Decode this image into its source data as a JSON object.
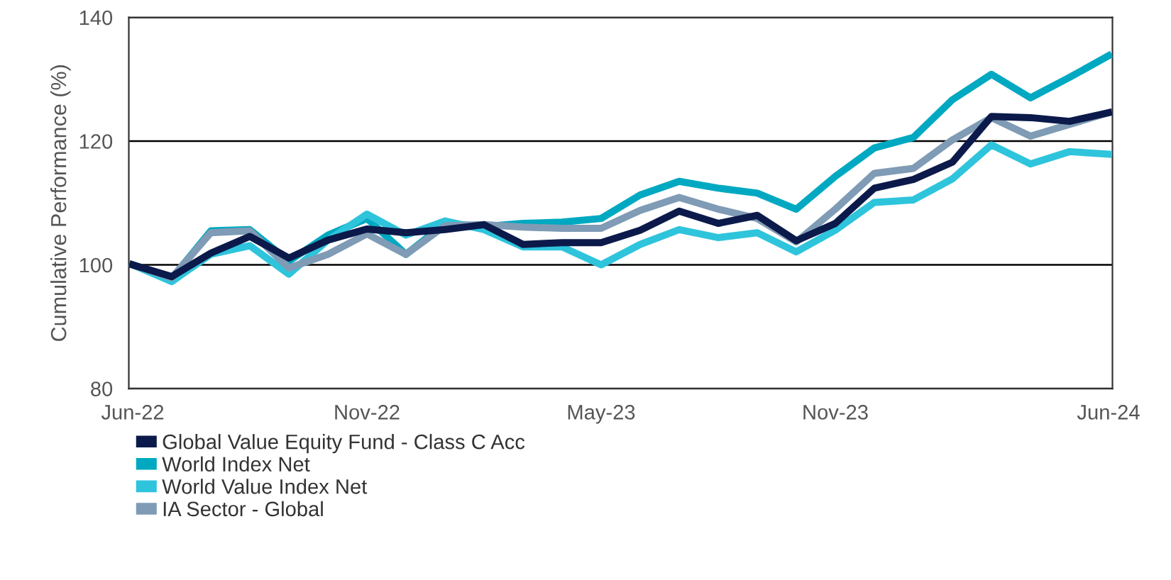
{
  "chart_data": {
    "type": "line",
    "ylabel": "Cumulative Performance (%)",
    "categories": [
      "Jun-22",
      null,
      null,
      null,
      null,
      null,
      "Nov-22",
      null,
      null,
      null,
      null,
      null,
      "May-23",
      null,
      null,
      null,
      null,
      null,
      "Nov-23",
      null,
      null,
      null,
      null,
      null,
      null,
      "Jun-24"
    ],
    "series": [
      {
        "name": "Global Value Equity Fund - Class C Acc",
        "color": "#0b1a4a",
        "values": [
          100,
          98.1,
          101.9,
          104.6,
          101.1,
          104,
          105.8,
          105.2,
          105.7,
          106.5,
          103.3,
          103.6,
          103.6,
          105.6,
          108.7,
          106.7,
          108,
          103.9,
          106.7,
          112.4,
          113.8,
          116.6,
          124,
          123.8,
          123.2,
          124.6
        ]
      },
      {
        "name": "World Index Net",
        "color": "#00a9c1",
        "values": [
          100,
          97.8,
          105.5,
          105.7,
          100.6,
          104.8,
          107.5,
          101.7,
          106.7,
          106.2,
          106.7,
          106.9,
          107.5,
          111.3,
          113.5,
          112.4,
          111.6,
          109,
          114.3,
          118.9,
          120.6,
          126.7,
          130.8,
          127,
          130.3,
          133.8
        ]
      },
      {
        "name": "World Value Index Net",
        "color": "#2ec4dc",
        "values": [
          100,
          97.3,
          101.7,
          103.1,
          98.5,
          104,
          108.2,
          104.8,
          107.1,
          105.7,
          102.9,
          102.9,
          100,
          103.3,
          105.7,
          104.4,
          105.2,
          102.1,
          105.6,
          110.1,
          110.5,
          113.9,
          119.4,
          116.3,
          118.3,
          117.9
        ]
      },
      {
        "name": "IA Sector - Global",
        "color": "#7f9bb5",
        "values": [
          100,
          97.9,
          105.2,
          105.5,
          99.5,
          101.7,
          105,
          101.7,
          106.3,
          106.5,
          106.1,
          105.9,
          105.9,
          108.8,
          110.9,
          109,
          107.5,
          103.7,
          109,
          114.8,
          115.6,
          120.2,
          123.8,
          120.8,
          122.7,
          124.6
        ]
      }
    ],
    "ylim": [
      80,
      140
    ],
    "yticks": [
      80,
      100,
      120,
      140
    ],
    "grid": "y",
    "legend": "bottom left",
    "line_style": "solid",
    "marker": "none"
  }
}
